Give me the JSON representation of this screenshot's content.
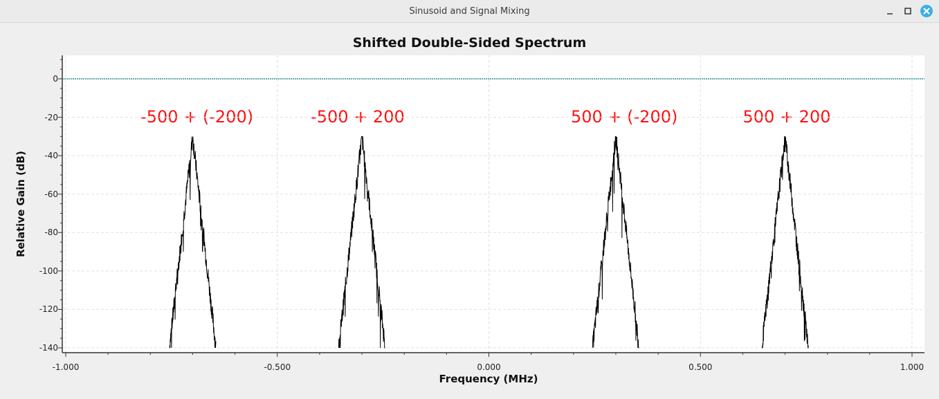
{
  "window": {
    "title": "Sinusoid and Signal Mixing",
    "buttons": [
      "minimize",
      "maximize",
      "close"
    ],
    "close_color": "#3daee9"
  },
  "chart_data": {
    "type": "line",
    "title": "Shifted Double-Sided Spectrum",
    "xlabel": "Frequency (MHz)",
    "ylabel": "Relative Gain (dB)",
    "xlim": [
      -1.0,
      1.0
    ],
    "ylim": [
      -140,
      12
    ],
    "x_ticks": [
      "-1.000",
      "-0.500",
      "0.000",
      "0.500",
      "1.000"
    ],
    "x_tick_values": [
      -1.0,
      -0.5,
      0.0,
      0.5,
      1.0
    ],
    "y_ticks": [
      "0",
      "-20",
      "-40",
      "-60",
      "-80",
      "-100",
      "-120",
      "-140"
    ],
    "y_tick_values": [
      0,
      -20,
      -40,
      -60,
      -80,
      -100,
      -120,
      -140
    ],
    "grid": true,
    "reference_line": {
      "y": 0,
      "color": "#008080"
    },
    "trace_color": "#000000",
    "peaks": [
      {
        "center": -0.7,
        "peak_db": -30,
        "low_edge": -0.755,
        "high_edge": -0.645
      },
      {
        "center": -0.3,
        "peak_db": -30,
        "low_edge": -0.355,
        "high_edge": -0.245
      },
      {
        "center": 0.3,
        "peak_db": -30,
        "low_edge": 0.245,
        "high_edge": 0.355
      },
      {
        "center": 0.7,
        "peak_db": -30,
        "low_edge": 0.645,
        "high_edge": 0.755
      }
    ],
    "annotations": [
      {
        "text": "-500 + (-200)",
        "x": -0.69,
        "y": -20,
        "color": "#ff1010"
      },
      {
        "text": "-500 + 200",
        "x": -0.31,
        "y": -20,
        "color": "#ff1010"
      },
      {
        "text": "500 + (-200)",
        "x": 0.32,
        "y": -20,
        "color": "#ff1010"
      },
      {
        "text": "500 + 200",
        "x": 0.704,
        "y": -20,
        "color": "#ff1010"
      }
    ]
  }
}
